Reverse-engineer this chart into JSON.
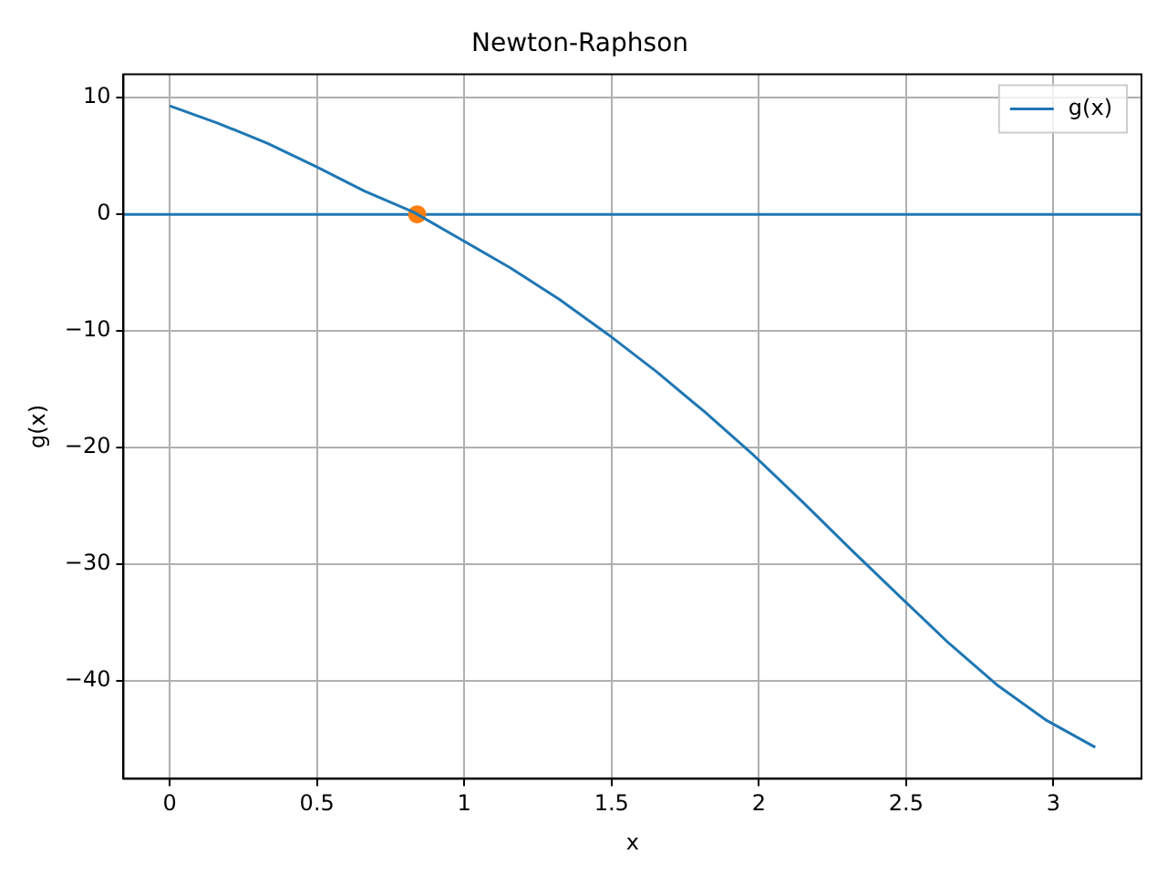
{
  "chart_data": {
    "type": "line",
    "title": "Newton-Raphson",
    "xlabel": "x",
    "ylabel": "g(x)",
    "xlim": [
      -0.157,
      3.299
    ],
    "ylim": [
      -48.4,
      12.0
    ],
    "xticks": [
      0,
      0.5,
      1,
      1.5,
      2,
      2.5,
      3
    ],
    "yticks": [
      -40,
      -30,
      -20,
      -10,
      0,
      10
    ],
    "grid": true,
    "legend": "top right",
    "marker": "none",
    "line_style": "solid",
    "ref_lines": [
      {
        "axis": "y",
        "value": 0,
        "color": "#1f77b4"
      }
    ],
    "series": [
      {
        "name": "g(x)",
        "color": "#1f77b4",
        "x": [
          0,
          0.165,
          0.331,
          0.496,
          0.661,
          0.827,
          0.992,
          1.157,
          1.323,
          1.488,
          1.653,
          1.819,
          1.984,
          2.15,
          2.315,
          2.48,
          2.646,
          2.811,
          2.977,
          3.142
        ],
        "values": [
          9.3,
          7.8,
          6.1,
          4.1,
          2.0,
          0.2,
          -2.2,
          -4.6,
          -7.3,
          -10.3,
          -13.5,
          -17.0,
          -20.7,
          -24.7,
          -28.8,
          -32.8,
          -36.8,
          -40.4,
          -43.4,
          -45.7
        ]
      },
      {
        "type": "scatter",
        "color": "#ff7f0e",
        "marker": "circle",
        "x": [
          0.84
        ],
        "values": [
          0
        ]
      }
    ]
  }
}
